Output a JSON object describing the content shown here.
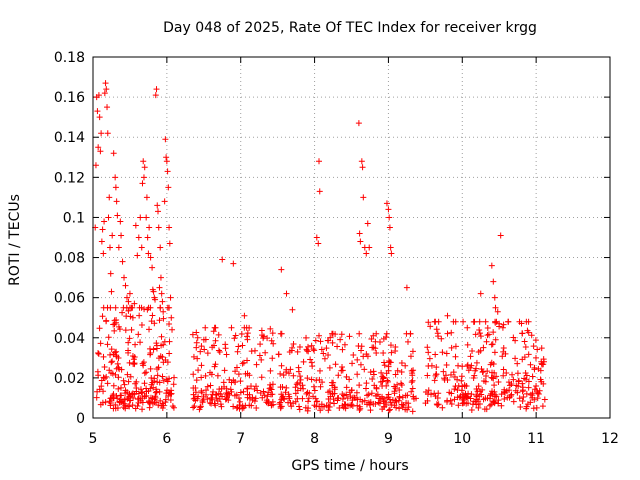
{
  "chart_data": {
    "type": "scatter",
    "title": "Day 048 of 2025, Rate Of TEC Index for receiver krgg",
    "xlabel": "GPS time / hours",
    "ylabel": "ROTI / TECUs",
    "xlim": [
      5,
      12
    ],
    "ylim": [
      0,
      0.18
    ],
    "xticks": [
      "5",
      "6",
      "7",
      "8",
      "9",
      "10",
      "11",
      "12"
    ],
    "yticks": [
      "0",
      "0.02",
      "0.04",
      "0.06",
      "0.08",
      "0.1",
      "0.12",
      "0.14",
      "0.16",
      "0.18"
    ],
    "grid": true,
    "marker": "+",
    "color": "#ff0000",
    "series": [
      {
        "name": "ROTI",
        "points": [
          [
            5.03,
            0.095
          ],
          [
            5.04,
            0.126
          ],
          [
            5.05,
            0.16
          ],
          [
            5.06,
            0.153
          ],
          [
            5.07,
            0.135
          ],
          [
            5.08,
            0.161
          ],
          [
            5.09,
            0.15
          ],
          [
            5.1,
            0.133
          ],
          [
            5.11,
            0.142
          ],
          [
            5.12,
            0.088
          ],
          [
            5.13,
            0.094
          ],
          [
            5.14,
            0.082
          ],
          [
            5.15,
            0.098
          ],
          [
            5.16,
            0.162
          ],
          [
            5.17,
            0.167
          ],
          [
            5.18,
            0.164
          ],
          [
            5.19,
            0.155
          ],
          [
            5.2,
            0.142
          ],
          [
            5.21,
            0.1
          ],
          [
            5.22,
            0.11
          ],
          [
            5.23,
            0.085
          ],
          [
            5.24,
            0.072
          ],
          [
            5.25,
            0.063
          ],
          [
            5.26,
            0.091
          ],
          [
            5.28,
            0.132
          ],
          [
            5.3,
            0.12
          ],
          [
            5.31,
            0.115
          ],
          [
            5.32,
            0.108
          ],
          [
            5.33,
            0.101
          ],
          [
            5.35,
            0.085
          ],
          [
            5.37,
            0.098
          ],
          [
            5.38,
            0.091
          ],
          [
            5.4,
            0.078
          ],
          [
            5.42,
            0.07
          ],
          [
            5.44,
            0.066
          ],
          [
            5.46,
            0.06
          ],
          [
            5.48,
            0.058
          ],
          [
            5.5,
            0.062
          ],
          [
            5.52,
            0.055
          ],
          [
            5.54,
            0.05
          ],
          [
            5.56,
            0.057
          ],
          [
            5.58,
            0.096
          ],
          [
            5.6,
            0.081
          ],
          [
            5.62,
            0.09
          ],
          [
            5.64,
            0.1
          ],
          [
            5.66,
            0.085
          ],
          [
            5.67,
            0.117
          ],
          [
            5.68,
            0.128
          ],
          [
            5.69,
            0.12
          ],
          [
            5.7,
            0.125
          ],
          [
            5.72,
            0.1
          ],
          [
            5.73,
            0.11
          ],
          [
            5.74,
            0.09
          ],
          [
            5.75,
            0.082
          ],
          [
            5.76,
            0.095
          ],
          [
            5.78,
            0.08
          ],
          [
            5.8,
            0.075
          ],
          [
            5.81,
            0.064
          ],
          [
            5.82,
            0.063
          ],
          [
            5.83,
            0.06
          ],
          [
            5.84,
            0.059
          ],
          [
            5.85,
            0.161
          ],
          [
            5.86,
            0.164
          ],
          [
            5.87,
            0.106
          ],
          [
            5.88,
            0.103
          ],
          [
            5.89,
            0.095
          ],
          [
            5.9,
            0.065
          ],
          [
            5.91,
            0.085
          ],
          [
            5.92,
            0.07
          ],
          [
            5.93,
            0.062
          ],
          [
            5.94,
            0.058
          ],
          [
            5.95,
            0.053
          ],
          [
            5.97,
            0.108
          ],
          [
            5.98,
            0.139
          ],
          [
            5.99,
            0.13
          ],
          [
            6.0,
            0.128
          ],
          [
            6.01,
            0.123
          ],
          [
            6.02,
            0.115
          ],
          [
            6.03,
            0.095
          ],
          [
            6.04,
            0.087
          ],
          [
            6.05,
            0.06
          ],
          [
            6.06,
            0.05
          ],
          [
            6.07,
            0.044
          ],
          [
            6.75,
            0.079
          ],
          [
            6.9,
            0.077
          ],
          [
            7.05,
            0.051
          ],
          [
            7.55,
            0.074
          ],
          [
            7.62,
            0.062
          ],
          [
            7.7,
            0.054
          ],
          [
            8.03,
            0.09
          ],
          [
            8.05,
            0.087
          ],
          [
            8.06,
            0.128
          ],
          [
            8.07,
            0.113
          ],
          [
            8.6,
            0.147
          ],
          [
            8.61,
            0.092
          ],
          [
            8.62,
            0.088
          ],
          [
            8.64,
            0.128
          ],
          [
            8.65,
            0.125
          ],
          [
            8.66,
            0.11
          ],
          [
            8.68,
            0.085
          ],
          [
            8.7,
            0.082
          ],
          [
            8.72,
            0.097
          ],
          [
            8.74,
            0.085
          ],
          [
            8.98,
            0.107
          ],
          [
            9.0,
            0.104
          ],
          [
            9.01,
            0.1
          ],
          [
            9.02,
            0.095
          ],
          [
            9.03,
            0.085
          ],
          [
            9.04,
            0.082
          ],
          [
            9.25,
            0.065
          ],
          [
            9.8,
            0.051
          ],
          [
            10.25,
            0.062
          ],
          [
            10.4,
            0.076
          ],
          [
            10.42,
            0.068
          ],
          [
            10.44,
            0.06
          ],
          [
            10.52,
            0.091
          ],
          [
            10.45,
            0.055
          ],
          [
            10.48,
            0.053
          ],
          [
            10.5,
            0.047
          ],
          [
            10.55,
            0.045
          ]
        ],
        "noise_segments": [
          {
            "x_start": 5.05,
            "x_end": 6.1,
            "y_min": 0.004,
            "y_max": 0.055,
            "count": 260
          },
          {
            "x_start": 6.35,
            "x_end": 7.45,
            "y_min": 0.004,
            "y_max": 0.045,
            "count": 200
          },
          {
            "x_start": 7.5,
            "x_end": 9.38,
            "y_min": 0.003,
            "y_max": 0.042,
            "count": 330
          },
          {
            "x_start": 9.5,
            "x_end": 11.12,
            "y_min": 0.004,
            "y_max": 0.048,
            "count": 300
          }
        ]
      }
    ]
  }
}
